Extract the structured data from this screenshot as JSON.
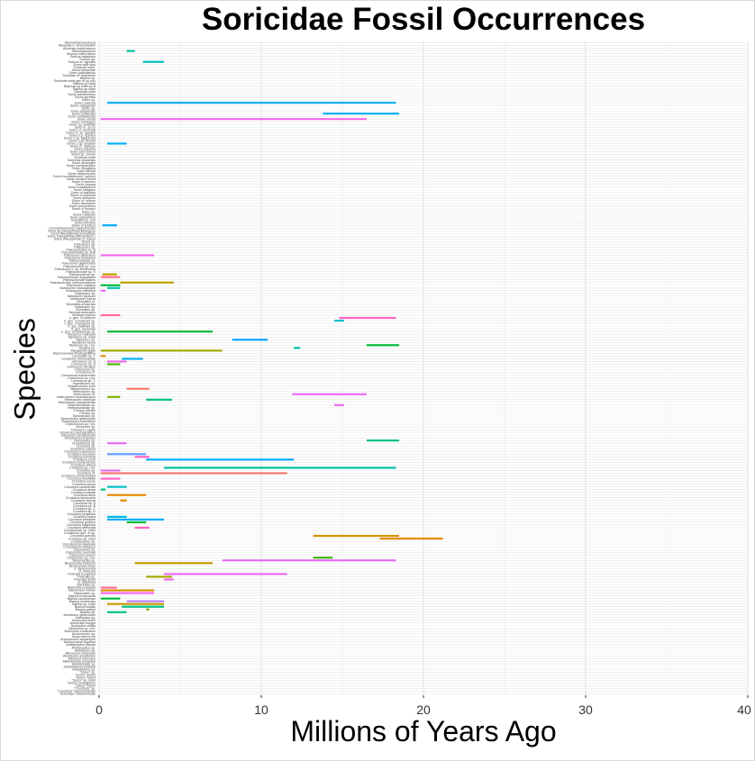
{
  "chart_data": {
    "type": "range-bar",
    "title": "Soricidae Fossil Occurrences",
    "xlabel": "Millions of Years Ago",
    "ylabel": "Species",
    "xlim": [
      0,
      40
    ],
    "x_ticks": [
      0,
      10,
      20,
      30,
      40
    ],
    "grid": true,
    "legend": "none",
    "categories": [
      "Wolmekaterswomuza",
      "Alluosala d. ammubatobis",
      "Alluosaa colubrovacus",
      "Allomeciasaurus",
      "Alluosa vullerroticus",
      "Soricus batavians",
      "Soricus sp.",
      "Soricus cf. agrestis",
      "Sorex wolt fons",
      "Soricinae indet.",
      "Anourosoricinae",
      "Sorex paleotiactus",
      "Soricidae cf. dubraunis",
      "Blarina sp.",
      "Soricinae indet gen et sp nov",
      "Blarina sp indet",
      "Blarinae sp indet sp B",
      "Blarina sp indet",
      "Blarinella indet",
      "Sorex adunfumicus",
      "Sorex aprestis",
      "Sorex sp.",
      "Sorex saxicola",
      "Sorex caliagensis",
      "Sorex sp.",
      "Sorex patoyensis",
      "Sorex poltyansis",
      "Sorex rondaviensis",
      "Sorex ormati",
      "Sorex norwegius",
      "Sorex sp ranlenski",
      "Sorex b. sp nu",
      "Sorex cf. semnoidi",
      "Sorex m. sp. ganghii",
      "Sorex s.p. sp(nov)",
      "Sorex s.sp. kigarensis",
      "Sorex s.sp. Aldonfi",
      "Sorex u.sp. doyanni",
      "Sorex cf. dawsoni",
      "Sorex palustris",
      "Sorex (af) vemeoi",
      "Sorex sp. cinerei",
      "Soricinae indet",
      "Soricinae arcaensis",
      "Sorex delkolpilei",
      "Sorex hornipanodus",
      "Sorex dinugialus",
      "Sorex kempii",
      "Sorex hidiquhuryus",
      "Sorex hornfiddiocem. sp(nov)",
      "Sorex ornatus fornid",
      "Sorex cf arornus",
      "Sorex oksana",
      "Sorex rcawtaybumi",
      "Sorex strogens",
      "Sorex cf palustris",
      "Sorex cf palmertti",
      "Sorex sonianus",
      "Sorex cf. mirtum",
      "Sorex sisorlaemi",
      "Sorex polopoterus",
      "Sorex cf ornatus",
      "Sorex sp.",
      "Sorex rubidulus",
      "Sorex palpusticus",
      "Sorex(hf) sp. cori",
      "Sorex bendirei",
      "Sorex cf arcticus",
      "Sorex(bremensis) magnumensis",
      "Sorex sp.(Neopyrimia) kisanguus",
      "Sorex (Neopyrimia) proverbiale",
      "Sorex (Neopyrimia) kfervertidos c",
      "Sorex (Neopyrimia) cf. kylere",
      "Sorex sp.",
      "Paleosorex sp.",
      "Paleosorex sp.",
      "Paleosoricidea sp. B",
      "Pseudotrimiolla sp. kolli",
      "Paleosorex hibernicus",
      "Paleosorex floridanus",
      "Paleosoricidae sp.",
      "Paleosorex gigantoides",
      "Paleosorex(cf) sp. nov",
      "Paleosorex s. sp. terranomis",
      "Paleosoricinae sp. S",
      "Paleosoricinae sp.",
      "Paleosoricinae angustatus",
      "Paleosoricinae tbalmis",
      "Paleosoricinae nothiorocroterus",
      "Paleosorex cristales",
      "Notiosorex marsaghoyeii",
      "Notiosorex crawfordi",
      "Notiosorex sp.",
      "Notiosorex jacksoni",
      "Notiosorex harrisi",
      "Nesiotites cf.",
      "Nesiotites arbaensis",
      "Notiosorex sp.",
      "Nesiotites sp.",
      "Neomys anomalus",
      "Neomys fodiens",
      "n. gen. Crocidurini",
      "n. gen. Crocidurini sp.",
      "n. gen. Pachyurini sp.",
      "n. gen. Blarinini sp.",
      "n. gen. Soricinae",
      "n. gen. Crocidurinae sp.",
      "Myosorex robinsoni",
      "Myosorex sp. indet",
      "Myosorex sp.",
      "Myosorex varius",
      "Myosorex sp. nov.",
      "Mogera sp.",
      "Megasorex gigas",
      "Macroneomys brachygnathus",
      "Lunasorex sp. T",
      "Lunasorex nominuaiulis",
      "Limnoecus sp. A",
      "Limnoecus sp. B",
      "Limnoecus tricuspis",
      "Limnoecus sp.",
      "Limnoecus cf.",
      "Limnoecus niobrarensis",
      "Limnoecus sp. nov.",
      "Limnoecus sp. C",
      "Ingentisorex sp.",
      "Hesperosorex lovei",
      "Hesperosorex sp.",
      "Heterosorex sp.",
      "Heterosorex cf.",
      "Heterosorex neumayrianus",
      "Heterosorex ruemkae",
      "Heterosorex sansaniensis",
      "Heterosoricinae sp.",
      "Heterosoricidae sp.",
      "Florinia stehlini",
      "Florinia sp.",
      "Episoriculus sp.",
      "Episoriculus gibberodon",
      "Episoriculus castellarini",
      "Episoriculus sp. nov.",
      "Dinosorex sp.",
      "Dinosorex zapfei",
      "Dinosorex pachygnathus",
      "Dinosorex sansaniensis",
      "Dimylosorex tholodus",
      "Deinsdorfia sp.",
      "Crocidurinae sp.",
      "Crocidura sp.",
      "Crocidura russula",
      "Crocidura suaveolens",
      "Crocidura leucodon",
      "Crocidura kornfeldi",
      "Crocidura zorzii",
      "Crocidura hordeolensis",
      "Crocidura obtusa",
      "Crocidura sp. nov.",
      "Crocidura sp.",
      "Crocidura cf.",
      "Crocidura zimmermanni",
      "Crocidura horsfieldii",
      "Crocidura esuae",
      "Crocidura sicula",
      "Crocidura canariensis",
      "Crocidura ainae",
      "Crocidura kapasi",
      "Crocidura aries",
      "Crocidura taxonomia",
      "Crocidura lasiura",
      "Crocidura sp. A",
      "Crocidura sp. B",
      "Crocidura sp. C",
      "Crocidura sp. D",
      "Crocidura pergrisea",
      "Crocidura viaria",
      "Crocidura whitakeri",
      "Crocidura jenkinsi",
      "Crocidura fuliginosa",
      "Crocidura attenuata",
      "Crocidurinae sp. indet",
      "Crocidurini gen. et sp.",
      "Crocidura grandis",
      "Crocidura sp. indet",
      "Crocidosorex sp.",
      "Crocidosorex piveteaui",
      "Crocidosorex antiquus",
      "Carposorex sp.",
      "Carposorex ruemkae",
      "Carposorex perezi",
      "Carposorex sp. nov.",
      "Beremendia sp.",
      "Beremendia fissidens",
      "Beremendia minor",
      "cf. Beremendia",
      "cf. Petenyia",
      "Petenyia hungarica",
      "Petenyia sp.",
      "Petenyia dubia",
      "cf. Blarinella",
      "Blarinella sp.",
      "Blarinella europaea",
      "Blarinoides mariae",
      "Blarinoides sp.",
      "Blarina brevicauda",
      "Blarina carolinensis",
      "Blarina ozarkensis",
      "Blarina sp. indet",
      "Blarina fossilis",
      "Blarina gidleyi",
      "Blarina sp.",
      "Asoriculus gibberodon",
      "Asoriculus sp.",
      "Asoriculus thenii",
      "Asoriculus burgioi",
      "Asoriculus similis",
      "Asoriculus sp. nov.",
      "Asoriculus corsicanus",
      "Anourosorex sp.",
      "Anourosorex kui",
      "Anourosorex squamipes",
      "Amblycoptus oligodon",
      "Amblycoptus jessiae",
      "Amblycoptus sp.",
      "Alluvisorex sp.",
      "Alluvisorex chasseae",
      "Alluvisorex arcadentes",
      "Allosorex stenodus",
      "Alloblarinella europaea",
      "Alloblarinella sp.",
      "Adeloblarina berklandi",
      "Adeloblarina sp.",
      "\"Sorex\" sp.",
      "\"Sorex\" dehmi",
      "\"Sorex\" helleri",
      "\"Sorex\" sp. indet",
      "\"Sorex\" praealpinus",
      "\"Sorex\" thaleri",
      "\"Crocidura\" sp.",
      "\"Crocidura\" kapsominensis",
      "\"Soricidae\" indeterminate"
    ],
    "ranges": [
      {
        "row": 3,
        "start": 1.7,
        "end": 2.2,
        "color": "#00BFA0"
      },
      {
        "row": 7,
        "start": 2.7,
        "end": 4.0,
        "color": "#00BFC4"
      },
      {
        "row": 22,
        "start": 0.5,
        "end": 18.3,
        "color": "#00B0F6"
      },
      {
        "row": 26,
        "start": 13.8,
        "end": 18.5,
        "color": "#00B0F6"
      },
      {
        "row": 28,
        "start": 0.1,
        "end": 16.5,
        "color": "#F066EA"
      },
      {
        "row": 37,
        "start": 0.5,
        "end": 1.7,
        "color": "#00B0F6"
      },
      {
        "row": 67,
        "start": 0.2,
        "end": 1.1,
        "color": "#00A9FF"
      },
      {
        "row": 78,
        "start": 0.1,
        "end": 3.4,
        "color": "#F066EA"
      },
      {
        "row": 85,
        "start": 0.2,
        "end": 1.1,
        "color": "#C49A00"
      },
      {
        "row": 86,
        "start": 0.1,
        "end": 1.3,
        "color": "#FF6C91"
      },
      {
        "row": 88,
        "start": 1.3,
        "end": 4.6,
        "color": "#B79F00"
      },
      {
        "row": 89,
        "start": 0.1,
        "end": 1.3,
        "color": "#00BA38"
      },
      {
        "row": 90,
        "start": 0.5,
        "end": 1.3,
        "color": "#00C0AF"
      },
      {
        "row": 91,
        "start": 0.1,
        "end": 0.4,
        "color": "#E76BF3"
      },
      {
        "row": 100,
        "start": 0.1,
        "end": 1.3,
        "color": "#FF689F"
      },
      {
        "row": 101,
        "start": 14.8,
        "end": 18.3,
        "color": "#FF62BC"
      },
      {
        "row": 102,
        "start": 14.5,
        "end": 15.1,
        "color": "#00BFC4"
      },
      {
        "row": 106,
        "start": 0.5,
        "end": 7.0,
        "color": "#00BA38"
      },
      {
        "row": 109,
        "start": 8.2,
        "end": 10.4,
        "color": "#00A5FF"
      },
      {
        "row": 111,
        "start": 16.5,
        "end": 18.5,
        "color": "#00BA38"
      },
      {
        "row": 112,
        "start": 12.0,
        "end": 12.4,
        "color": "#00C19F"
      },
      {
        "row": 113,
        "start": 0.1,
        "end": 7.6,
        "color": "#A3A500"
      },
      {
        "row": 115,
        "start": 0.1,
        "end": 0.4,
        "color": "#E58700"
      },
      {
        "row": 116,
        "start": 1.4,
        "end": 2.7,
        "color": "#00B0F6"
      },
      {
        "row": 117,
        "start": 0.5,
        "end": 1.7,
        "color": "#F066EA"
      },
      {
        "row": 118,
        "start": 0.5,
        "end": 1.3,
        "color": "#53B400"
      },
      {
        "row": 127,
        "start": 1.7,
        "end": 3.1,
        "color": "#F8766D"
      },
      {
        "row": 129,
        "start": 11.9,
        "end": 16.5,
        "color": "#E76BF3"
      },
      {
        "row": 130,
        "start": 0.5,
        "end": 1.3,
        "color": "#7CAE00"
      },
      {
        "row": 131,
        "start": 2.9,
        "end": 4.5,
        "color": "#00BF7D"
      },
      {
        "row": 133,
        "start": 14.5,
        "end": 15.1,
        "color": "#F066EA"
      },
      {
        "row": 146,
        "start": 16.5,
        "end": 18.5,
        "color": "#00BF7D"
      },
      {
        "row": 147,
        "start": 0.5,
        "end": 1.7,
        "color": "#E76BF3"
      },
      {
        "row": 151,
        "start": 0.5,
        "end": 2.9,
        "color": "#619CFF"
      },
      {
        "row": 152,
        "start": 2.2,
        "end": 3.1,
        "color": "#FF61C3"
      },
      {
        "row": 153,
        "start": 2.9,
        "end": 12.0,
        "color": "#00A9FF"
      },
      {
        "row": 156,
        "start": 4.0,
        "end": 18.3,
        "color": "#00BFA0"
      },
      {
        "row": 157,
        "start": 0.1,
        "end": 1.3,
        "color": "#E76BF3"
      },
      {
        "row": 158,
        "start": 0.1,
        "end": 11.6,
        "color": "#F8766D"
      },
      {
        "row": 160,
        "start": 0.1,
        "end": 1.3,
        "color": "#FF61C3"
      },
      {
        "row": 163,
        "start": 0.5,
        "end": 1.7,
        "color": "#00BFC4"
      },
      {
        "row": 164,
        "start": 0.1,
        "end": 0.4,
        "color": "#00BF7D"
      },
      {
        "row": 166,
        "start": 0.5,
        "end": 2.9,
        "color": "#E38900"
      },
      {
        "row": 168,
        "start": 1.3,
        "end": 1.7,
        "color": "#E58700"
      },
      {
        "row": 174,
        "start": 0.5,
        "end": 1.7,
        "color": "#00B8E7"
      },
      {
        "row": 175,
        "start": 0.5,
        "end": 4.0,
        "color": "#00A9FF"
      },
      {
        "row": 176,
        "start": 1.7,
        "end": 2.9,
        "color": "#00BA38"
      },
      {
        "row": 178,
        "start": 2.2,
        "end": 3.1,
        "color": "#FF61C3"
      },
      {
        "row": 181,
        "start": 13.2,
        "end": 18.5,
        "color": "#D39200"
      },
      {
        "row": 182,
        "start": 17.3,
        "end": 21.2,
        "color": "#E38900"
      },
      {
        "row": 189,
        "start": 13.2,
        "end": 14.4,
        "color": "#39B600"
      },
      {
        "row": 190,
        "start": 7.6,
        "end": 18.3,
        "color": "#E76BF3"
      },
      {
        "row": 191,
        "start": 2.2,
        "end": 7.0,
        "color": "#C99800"
      },
      {
        "row": 195,
        "start": 4.0,
        "end": 11.6,
        "color": "#E76BF3"
      },
      {
        "row": 196,
        "start": 2.9,
        "end": 4.5,
        "color": "#A3A500"
      },
      {
        "row": 197,
        "start": 4.0,
        "end": 4.6,
        "color": "#F066EA"
      },
      {
        "row": 200,
        "start": 0.1,
        "end": 1.1,
        "color": "#FF6C91"
      },
      {
        "row": 201,
        "start": 0.1,
        "end": 3.4,
        "color": "#D89000"
      },
      {
        "row": 202,
        "start": 0.1,
        "end": 3.4,
        "color": "#F066EA"
      },
      {
        "row": 204,
        "start": 0.1,
        "end": 1.3,
        "color": "#00BA38"
      },
      {
        "row": 205,
        "start": 1.7,
        "end": 4.0,
        "color": "#B983FF"
      },
      {
        "row": 206,
        "start": 0.5,
        "end": 4.0,
        "color": "#C49A00"
      },
      {
        "row": 207,
        "start": 1.4,
        "end": 4.0,
        "color": "#00BF7D"
      },
      {
        "row": 208,
        "start": 2.9,
        "end": 3.1,
        "color": "#7CAE00"
      },
      {
        "row": 209,
        "start": 0.5,
        "end": 1.7,
        "color": "#00BF7D"
      }
    ]
  }
}
